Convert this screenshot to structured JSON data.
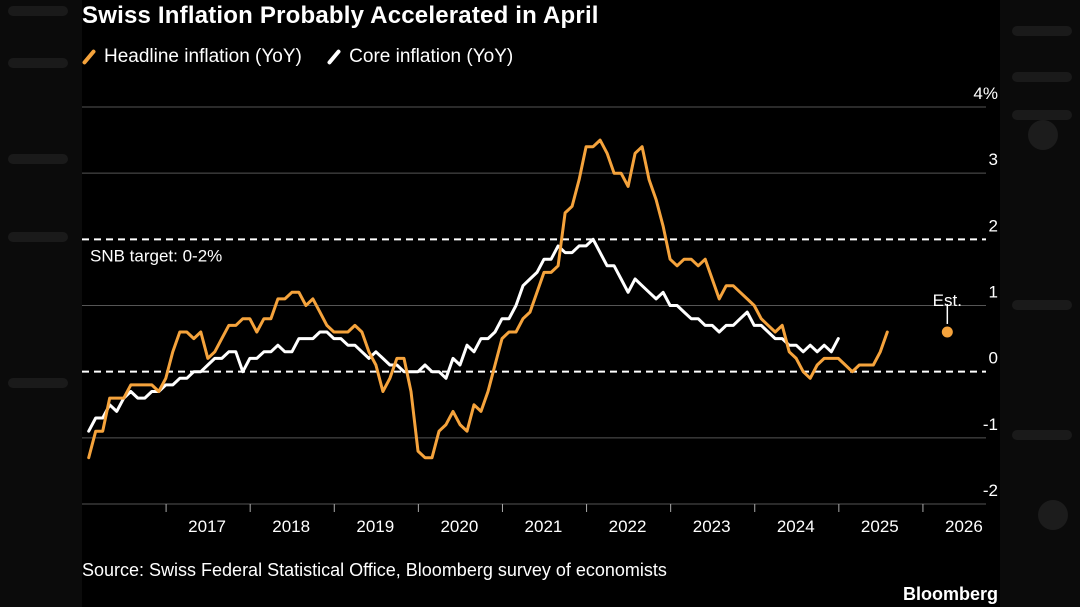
{
  "title": "Swiss Inflation Probably Accelerated in April",
  "legend": [
    {
      "label": "Headline inflation (YoY)",
      "color": "#f5a33c"
    },
    {
      "label": "Core inflation (YoY)",
      "color": "#ffffff"
    }
  ],
  "source": "Source: Swiss Federal Statistical Office, Bloomberg survey of economists",
  "brand": "Bloomberg",
  "colors": {
    "background": "#000000",
    "headline": "#f5a33c",
    "core": "#ffffff",
    "grid": "#555555"
  },
  "chart_data": {
    "type": "line",
    "title": "Swiss Inflation Probably Accelerated in April",
    "xlabel": "",
    "ylabel": "",
    "unit": "%",
    "xlim": [
      2016.0,
      2026.75
    ],
    "ylim": [
      -2,
      4
    ],
    "y_ticks": [
      {
        "value": 4,
        "label": "4%"
      },
      {
        "value": 3,
        "label": "3"
      },
      {
        "value": 2,
        "label": "2"
      },
      {
        "value": 1,
        "label": "1"
      },
      {
        "value": 0,
        "label": "0"
      },
      {
        "value": -1,
        "label": "-1"
      },
      {
        "value": -2,
        "label": "-2"
      }
    ],
    "x_ticks": [
      "2017",
      "2018",
      "2019",
      "2020",
      "2021",
      "2022",
      "2023",
      "2024",
      "2025",
      "2026"
    ],
    "grid": true,
    "legend_position": "top-left",
    "reference_lines": [
      {
        "y": 2,
        "style": "dashed",
        "label": "SNB target: 0-2%"
      },
      {
        "y": 0,
        "style": "dashed",
        "label": ""
      }
    ],
    "annotation": {
      "label": "Est.",
      "series": "Headline inflation (YoY)",
      "x": 2026.29,
      "y": 0.6
    },
    "series": [
      {
        "name": "Headline inflation (YoY)",
        "color": "#f5a33c",
        "x_start": 2016.08,
        "step": 0.0833,
        "values": [
          -1.3,
          -0.9,
          -0.9,
          -0.4,
          -0.4,
          -0.4,
          -0.2,
          -0.2,
          -0.2,
          -0.2,
          -0.3,
          -0.1,
          0.3,
          0.6,
          0.6,
          0.5,
          0.6,
          0.2,
          0.3,
          0.5,
          0.7,
          0.7,
          0.8,
          0.8,
          0.6,
          0.8,
          0.8,
          1.1,
          1.1,
          1.2,
          1.2,
          1.0,
          1.1,
          0.9,
          0.7,
          0.6,
          0.6,
          0.6,
          0.7,
          0.6,
          0.3,
          0.1,
          -0.3,
          -0.1,
          0.2,
          0.2,
          -0.3,
          -1.2,
          -1.3,
          -1.3,
          -0.9,
          -0.8,
          -0.6,
          -0.8,
          -0.9,
          -0.5,
          -0.6,
          -0.3,
          0.1,
          0.5,
          0.6,
          0.6,
          0.8,
          0.9,
          1.2,
          1.5,
          1.5,
          1.6,
          2.4,
          2.5,
          2.9,
          3.4,
          3.4,
          3.5,
          3.3,
          3.0,
          3.0,
          2.8,
          3.3,
          3.4,
          2.9,
          2.6,
          2.2,
          1.7,
          1.6,
          1.7,
          1.7,
          1.6,
          1.7,
          1.4,
          1.1,
          1.3,
          1.3,
          1.2,
          1.1,
          1.0,
          0.8,
          0.7,
          0.6,
          0.7,
          0.3,
          0.2,
          0.0,
          -0.1,
          0.1,
          0.2,
          0.2,
          0.2,
          0.1,
          0.0,
          0.1,
          0.1,
          0.1,
          0.3,
          0.6
        ]
      },
      {
        "name": "Core inflation (YoY)",
        "color": "#ffffff",
        "x_start": 2016.08,
        "step": 0.0833,
        "values": [
          -0.9,
          -0.7,
          -0.7,
          -0.5,
          -0.6,
          -0.4,
          -0.3,
          -0.4,
          -0.4,
          -0.3,
          -0.3,
          -0.2,
          -0.2,
          -0.1,
          -0.1,
          0.0,
          0.0,
          0.1,
          0.2,
          0.2,
          0.3,
          0.3,
          0.0,
          0.2,
          0.2,
          0.3,
          0.3,
          0.4,
          0.3,
          0.3,
          0.5,
          0.5,
          0.5,
          0.6,
          0.6,
          0.5,
          0.5,
          0.4,
          0.4,
          0.3,
          0.2,
          0.3,
          0.2,
          0.1,
          0.1,
          0.0,
          0.0,
          0.0,
          0.1,
          0.0,
          0.0,
          -0.1,
          0.2,
          0.1,
          0.4,
          0.3,
          0.5,
          0.5,
          0.6,
          0.8,
          0.8,
          1.0,
          1.3,
          1.4,
          1.5,
          1.7,
          1.7,
          1.9,
          1.8,
          1.8,
          1.9,
          1.9,
          2.0,
          1.8,
          1.6,
          1.6,
          1.4,
          1.2,
          1.4,
          1.3,
          1.2,
          1.1,
          1.2,
          1.0,
          1.0,
          0.9,
          0.8,
          0.8,
          0.7,
          0.7,
          0.6,
          0.7,
          0.7,
          0.8,
          0.9,
          0.7,
          0.7,
          0.6,
          0.5,
          0.5,
          0.4,
          0.4,
          0.3,
          0.4,
          0.3,
          0.4,
          0.3,
          0.5
        ]
      }
    ]
  }
}
